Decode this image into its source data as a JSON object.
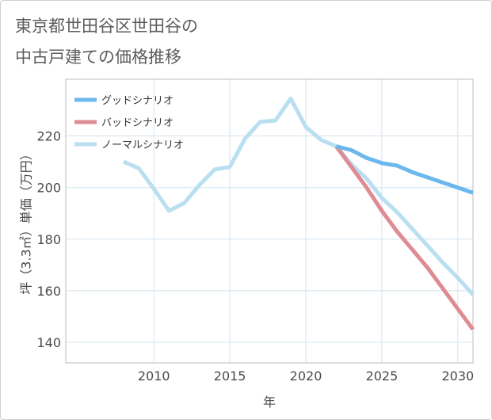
{
  "title_lines": [
    "東京都世田谷区世田谷の",
    "中古戸建ての価格推移"
  ],
  "chart_data": {
    "type": "line",
    "title": "東京都世田谷区世田谷の中古戸建ての価格推移",
    "xlabel": "年",
    "ylabel": "坪（3.3㎡）単価（万円）",
    "xlim": [
      2004.2,
      2031.0
    ],
    "ylim": [
      132,
      242
    ],
    "xticks": [
      2010,
      2015,
      2020,
      2025,
      2030
    ],
    "yticks": [
      140,
      160,
      180,
      200,
      220
    ],
    "grid": true,
    "legend_position": "top-left",
    "series": [
      {
        "name": "グッドシナリオ",
        "color": "#6cb8ee",
        "x": [
          2022,
          2023,
          2024,
          2025,
          2026,
          2027,
          2028,
          2029,
          2030,
          2031
        ],
        "y": [
          216,
          214.5,
          211.5,
          209.5,
          208.5,
          206,
          204,
          202,
          200,
          198
        ]
      },
      {
        "name": "バッドシナリオ",
        "color": "#de8b93",
        "x": [
          2022,
          2023,
          2024,
          2025,
          2026,
          2027,
          2028,
          2029,
          2030,
          2031
        ],
        "y": [
          216,
          208,
          200,
          191,
          183,
          176,
          169,
          161,
          153,
          145
        ]
      },
      {
        "name": "ノーマルシナリオ",
        "color": "#b9dff0",
        "x": [
          2008,
          2009,
          2010,
          2011,
          2012,
          2013,
          2014,
          2015,
          2016,
          2017,
          2018,
          2019,
          2020,
          2021,
          2022,
          2023,
          2024,
          2025,
          2026,
          2027,
          2028,
          2029,
          2030,
          2031
        ],
        "y": [
          210,
          207.5,
          199.5,
          191,
          194,
          201,
          207,
          208,
          219,
          225.5,
          226,
          234.5,
          223.5,
          218.5,
          216,
          209,
          203.5,
          196,
          190.5,
          184,
          177.5,
          171,
          165,
          158.5
        ]
      }
    ]
  }
}
